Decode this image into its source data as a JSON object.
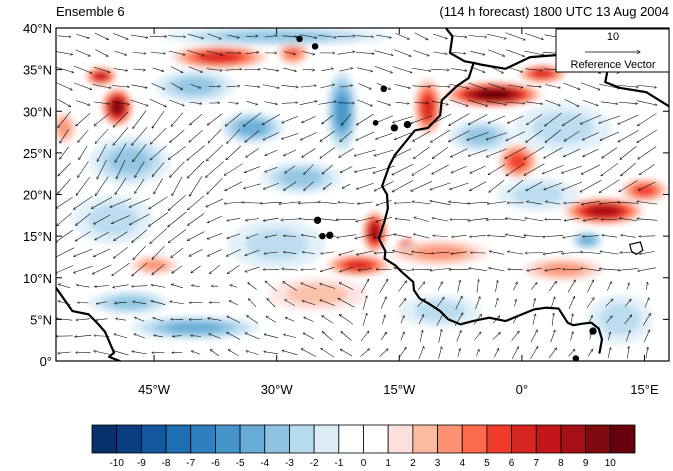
{
  "header": {
    "title_left": "Ensemble 6",
    "title_right": "(114 h forecast) 1800 UTC 13 Aug 2004"
  },
  "map": {
    "lat_labels": [
      "40°N",
      "35°N",
      "30°N",
      "25°N",
      "20°N",
      "15°N",
      "10°N",
      "5°N",
      "0°"
    ],
    "lon_labels": [
      "45°W",
      "30°W",
      "15°W",
      "0°",
      "15°E"
    ],
    "lon_range": [
      -57,
      18
    ],
    "lat_range": [
      0,
      40
    ]
  },
  "reference_vector": {
    "magnitude": "10",
    "label": "Reference Vector"
  },
  "colorbar": {
    "colors": [
      "#08306b",
      "#0b3d83",
      "#13589f",
      "#1f6db3",
      "#2e7fbf",
      "#4595ca",
      "#66acd6",
      "#8ec4e2",
      "#b6dbee",
      "#dcedf8",
      "#ffffff",
      "#ffffff",
      "#fde0dd",
      "#fcbba1",
      "#fc9272",
      "#fb6a4a",
      "#ef3b2c",
      "#d7261f",
      "#c3161b",
      "#a50f15",
      "#7f0a0e",
      "#67000d"
    ],
    "tick_labels": [
      "-10",
      "-9",
      "-8",
      "-7",
      "-6",
      "-5",
      "-4",
      "-3",
      "-2",
      "-1",
      "0",
      "1",
      "2",
      "3",
      "4",
      "5",
      "6",
      "7",
      "8",
      "9",
      "10"
    ]
  },
  "field_blobs": [
    {
      "lon": -49.5,
      "lat": 30.5,
      "level": 9,
      "rx": 2.0,
      "ry": 2.4
    },
    {
      "lon": -51.5,
      "lat": 34.2,
      "level": 7,
      "rx": 2.0,
      "ry": 1.2
    },
    {
      "lon": -37,
      "lat": 36.5,
      "level": 6,
      "rx": 6,
      "ry": 1.5
    },
    {
      "lon": -28,
      "lat": 37,
      "level": 4,
      "rx": 2,
      "ry": 1.5
    },
    {
      "lon": -11.5,
      "lat": 30.5,
      "level": 6,
      "rx": 1.8,
      "ry": 3.5
    },
    {
      "lon": -3.5,
      "lat": 32,
      "level": 10,
      "rx": 6,
      "ry": 1.6
    },
    {
      "lon": 2.5,
      "lat": 34.5,
      "level": 6,
      "rx": 3,
      "ry": 1.2
    },
    {
      "lon": -0.5,
      "lat": 24,
      "level": 5,
      "rx": 2.5,
      "ry": 2.2
    },
    {
      "lon": 10,
      "lat": 18,
      "level": 8,
      "rx": 5,
      "ry": 1.7
    },
    {
      "lon": 15,
      "lat": 20.5,
      "level": 5,
      "rx": 3,
      "ry": 1.5
    },
    {
      "lon": -18,
      "lat": 15.5,
      "level": 8,
      "rx": 1.6,
      "ry": 2.6
    },
    {
      "lon": -14,
      "lat": 13.5,
      "level": 10,
      "rx": 1.5,
      "ry": 1.3
    },
    {
      "lon": -20,
      "lat": 11.5,
      "level": 6,
      "rx": 4,
      "ry": 1.4
    },
    {
      "lon": -10,
      "lat": 13,
      "level": 3,
      "rx": 6,
      "ry": 1.6
    },
    {
      "lon": 5,
      "lat": 11,
      "level": 3,
      "rx": 5,
      "ry": 1.4
    },
    {
      "lon": -45,
      "lat": 11.5,
      "level": 3,
      "rx": 3,
      "ry": 1.2
    },
    {
      "lon": -22,
      "lat": 30,
      "level": -5,
      "rx": 2,
      "ry": 5
    },
    {
      "lon": -33,
      "lat": 28,
      "level": -4,
      "rx": 4,
      "ry": 2
    },
    {
      "lon": -27,
      "lat": 22,
      "level": -3,
      "rx": 5,
      "ry": 2
    },
    {
      "lon": -48,
      "lat": 24,
      "level": -3,
      "rx": 5,
      "ry": 3
    },
    {
      "lon": -40,
      "lat": 33,
      "level": -3,
      "rx": 5,
      "ry": 2
    },
    {
      "lon": -40,
      "lat": 4,
      "level": -4,
      "rx": 8,
      "ry": 1.5
    },
    {
      "lon": -48,
      "lat": 7,
      "level": -3,
      "rx": 5,
      "ry": 1.5
    },
    {
      "lon": -50,
      "lat": 17,
      "level": -2,
      "rx": 5,
      "ry": 3
    },
    {
      "lon": -5,
      "lat": 27,
      "level": -3,
      "rx": 4,
      "ry": 2
    },
    {
      "lon": 5,
      "lat": 28,
      "level": -2,
      "rx": 6,
      "ry": 3
    },
    {
      "lon": 8,
      "lat": 14.5,
      "level": -4,
      "rx": 2,
      "ry": 1.2
    },
    {
      "lon": 2,
      "lat": 20,
      "level": -2,
      "rx": 5,
      "ry": 2
    },
    {
      "lon": -30,
      "lat": 39,
      "level": -3,
      "rx": 14,
      "ry": 1.2
    },
    {
      "lon": -10,
      "lat": 6,
      "level": -2,
      "rx": 5,
      "ry": 2
    },
    {
      "lon": 12,
      "lat": 5,
      "level": -2,
      "rx": 4,
      "ry": 3
    },
    {
      "lon": -30,
      "lat": 14,
      "level": -2,
      "rx": 6,
      "ry": 3
    },
    {
      "lon": -56,
      "lat": 28,
      "level": 3,
      "rx": 1.5,
      "ry": 2
    },
    {
      "lon": -25,
      "lat": 8,
      "level": 2,
      "rx": 6,
      "ry": 2
    }
  ],
  "coastlines": [
    [
      [
        -5.9,
        35.8
      ],
      [
        -7,
        36
      ],
      [
        -8.8,
        37
      ],
      [
        -8.5,
        39
      ],
      [
        -9.3,
        40
      ]
    ],
    [
      [
        -5.9,
        35.8
      ],
      [
        -5,
        35.6
      ],
      [
        -2,
        35.1
      ],
      [
        1,
        36.5
      ],
      [
        5,
        36.8
      ],
      [
        10,
        37.2
      ],
      [
        11,
        36.5
      ],
      [
        10.5,
        35
      ],
      [
        10.2,
        33.5
      ],
      [
        12,
        32.8
      ],
      [
        15.2,
        32.3
      ],
      [
        18,
        30.6
      ]
    ],
    [
      [
        -5.9,
        35.8
      ],
      [
        -6.5,
        34
      ],
      [
        -8,
        33
      ],
      [
        -9.8,
        31.3
      ],
      [
        -10,
        29.5
      ],
      [
        -11.5,
        28
      ],
      [
        -13.1,
        27.7
      ],
      [
        -14.5,
        26
      ],
      [
        -15.5,
        24.8
      ],
      [
        -16.2,
        23.5
      ],
      [
        -17.1,
        21
      ],
      [
        -16.5,
        20
      ],
      [
        -16.4,
        18.3
      ],
      [
        -16.8,
        16.8
      ],
      [
        -17.5,
        14.7
      ],
      [
        -16.7,
        13.2
      ],
      [
        -16.8,
        12.3
      ],
      [
        -15.5,
        11.5
      ],
      [
        -14.7,
        10.7
      ],
      [
        -13.3,
        9.5
      ],
      [
        -13.2,
        8.5
      ],
      [
        -12.5,
        7.5
      ],
      [
        -11.4,
        6.9
      ],
      [
        -10,
        6
      ],
      [
        -9,
        5
      ],
      [
        -7.5,
        4.4
      ],
      [
        -6,
        4.8
      ],
      [
        -4,
        5.2
      ],
      [
        -2,
        4.8
      ],
      [
        0,
        5.6
      ],
      [
        1.5,
        6.2
      ],
      [
        3,
        6.4
      ],
      [
        4.5,
        6.3
      ],
      [
        5.6,
        4.6
      ],
      [
        6.3,
        4.3
      ],
      [
        7.5,
        4.5
      ],
      [
        8.5,
        4.6
      ],
      [
        9.4,
        3.9
      ],
      [
        9.8,
        2.6
      ],
      [
        9.5,
        1
      ]
    ],
    [
      [
        -57,
        8.8
      ],
      [
        -55,
        6.0
      ],
      [
        -53,
        5.6
      ],
      [
        -51.8,
        4.4
      ],
      [
        -51,
        3.5
      ],
      [
        -50.3,
        1.9
      ],
      [
        -49.9,
        1.0
      ],
      [
        -50.5,
        0.5
      ],
      [
        -49.2,
        0
      ]
    ]
  ],
  "islands": [
    {
      "lon": -25,
      "lat": 16.9,
      "r": 0.35
    },
    {
      "lon": -24.4,
      "lat": 15.0,
      "r": 0.3
    },
    {
      "lon": -23.5,
      "lat": 15.1,
      "r": 0.35
    },
    {
      "lon": -25.3,
      "lat": 37.8,
      "r": 0.3
    },
    {
      "lon": -27.2,
      "lat": 38.7,
      "r": 0.3
    },
    {
      "lon": -16.9,
      "lat": 32.7,
      "r": 0.3
    },
    {
      "lon": -15.6,
      "lat": 28.0,
      "r": 0.35
    },
    {
      "lon": -14.0,
      "lat": 28.4,
      "r": 0.35
    },
    {
      "lon": -17.9,
      "lat": 28.6,
      "r": 0.25
    },
    {
      "lon": 8.7,
      "lat": 3.6,
      "r": 0.35
    },
    {
      "lon": 6.6,
      "lat": 0.3,
      "r": 0.3
    }
  ],
  "lakes": [
    [
      [
        13.2,
        14
      ],
      [
        14.5,
        14.3
      ],
      [
        14.8,
        13.3
      ],
      [
        14,
        12.8
      ],
      [
        13.4,
        13.2
      ]
    ]
  ]
}
